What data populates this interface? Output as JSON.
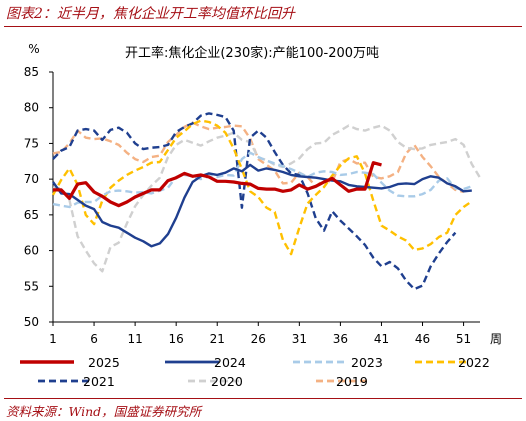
{
  "figure_title": "图表2：近半月，焦化企业开工率均值环比回升",
  "source": "资料来源：Wind，国盛证券研究所",
  "chart_data": {
    "type": "line",
    "title": "开工率:焦化企业(230家):产能100-200万吨",
    "ylabel": "%",
    "xlabel": "周",
    "ylim": [
      50,
      85
    ],
    "xlim": [
      1,
      53
    ],
    "yticks": [
      50,
      55,
      60,
      65,
      70,
      75,
      80,
      85
    ],
    "xticks": [
      1,
      6,
      11,
      16,
      21,
      26,
      31,
      36,
      41,
      46,
      51
    ],
    "grid": false,
    "legend_position": "bottom",
    "series": [
      {
        "name": "2025",
        "color": "#c00000",
        "dash": "solid",
        "width": 3.2,
        "values": [
          68.5,
          68.5,
          67.3,
          69.3,
          69.5,
          68.2,
          67.6,
          66.8,
          66.3,
          66.8,
          67.5,
          68.0,
          68.5,
          68.5,
          69.8,
          70.2,
          70.8,
          70.4,
          70.6,
          70.3,
          69.7,
          69.7,
          69.6,
          69.4,
          69.3,
          68.7,
          68.6,
          68.6,
          68.3,
          68.5,
          69.2,
          68.6,
          69.0,
          69.6,
          70.1,
          69.2,
          68.3,
          68.6,
          68.6,
          72.3,
          72.0
        ]
      },
      {
        "name": "2024",
        "color": "#1f3f8f",
        "dash": "solid",
        "width": 2.4,
        "values": [
          69.6,
          68.0,
          67.9,
          67.1,
          66.3,
          65.8,
          64.0,
          63.5,
          63.2,
          62.5,
          61.8,
          61.3,
          60.6,
          61.0,
          62.3,
          64.6,
          67.4,
          69.6,
          70.4,
          70.8,
          70.6,
          70.9,
          71.5,
          71.1,
          72.0,
          71.2,
          71.5,
          71.3,
          71.0,
          70.6,
          70.4,
          70.3,
          70.2,
          70.0,
          69.8,
          69.7,
          69.2,
          69.0,
          68.9,
          68.8,
          68.7,
          68.9,
          69.3,
          69.4,
          69.3,
          70.0,
          70.4,
          70.2,
          69.4,
          69.0,
          68.3,
          68.4
        ]
      },
      {
        "name": "2023",
        "color": "#a9cbe8",
        "dash": "dash",
        "width": 2.4,
        "values": [
          66.5,
          66.3,
          66.1,
          66.7,
          66.8,
          66.8,
          67.7,
          68.3,
          68.4,
          68.3,
          68.1,
          68.2,
          68.0,
          68.4,
          68.8,
          70.3,
          70.6,
          70.4,
          70.0,
          70.4,
          70.3,
          70.6,
          70.5,
          72.8,
          73.7,
          73.1,
          72.6,
          72.2,
          71.8,
          71.4,
          70.9,
          70.3,
          70.9,
          71.1,
          71.0,
          70.6,
          70.7,
          71.0,
          70.9,
          70.7,
          69.5,
          68.4,
          67.7,
          67.6,
          67.6,
          67.9,
          68.5,
          69.8,
          70.1,
          68.7,
          68.6,
          69.0
        ]
      },
      {
        "name": "2022",
        "color": "#ffc000",
        "dash": "dash",
        "width": 2.4,
        "values": [
          67.8,
          69.9,
          71.5,
          69.2,
          65.0,
          63.7,
          67.0,
          68.8,
          69.8,
          70.6,
          71.2,
          71.7,
          72.3,
          72.4,
          74.1,
          75.8,
          76.7,
          77.7,
          78.2,
          78.0,
          77.5,
          76.5,
          74.3,
          71.4,
          68.3,
          67.5,
          66.0,
          65.4,
          61.5,
          59.5,
          63.2,
          66.6,
          67.8,
          68.9,
          70.5,
          71.9,
          72.9,
          73.2,
          70.8,
          67.0,
          63.5,
          62.8,
          62.0,
          61.4,
          60.1,
          60.3,
          60.9,
          61.9,
          62.5,
          65.0,
          66.1,
          66.9
        ]
      },
      {
        "name": "2021",
        "color": "#1f3f8f",
        "dash": "dash",
        "width": 2.4,
        "values": [
          72.8,
          74.0,
          74.5,
          76.8,
          77.0,
          76.8,
          75.5,
          76.9,
          77.2,
          76.5,
          75.0,
          74.2,
          74.4,
          74.5,
          74.8,
          76.6,
          77.3,
          77.8,
          78.9,
          79.2,
          79.0,
          78.7,
          76.8,
          66.0,
          75.8,
          76.8,
          75.8,
          73.8,
          72.0,
          70.8,
          70.6,
          68.0,
          64.5,
          62.8,
          65.5,
          64.2,
          63.1,
          62.0,
          60.8,
          59.0,
          57.8,
          58.4,
          57.5,
          55.8,
          54.6,
          55.1,
          57.8,
          59.6,
          61.2,
          62.5
        ]
      },
      {
        "name": "2020",
        "color": "#d0d0d0",
        "dash": "dash",
        "width": 2.4,
        "values": [
          68.8,
          68.7,
          67.1,
          62.0,
          60.0,
          58.2,
          57.1,
          60.5,
          61.1,
          63.8,
          66.2,
          67.8,
          69.1,
          70.2,
          73.1,
          74.8,
          75.5,
          75.1,
          74.7,
          75.3,
          75.8,
          76.1,
          76.5,
          75.5,
          75.2,
          73.0,
          72.7,
          72.0,
          71.7,
          72.2,
          72.9,
          74.2,
          75.0,
          75.1,
          76.2,
          76.8,
          77.5,
          77.0,
          76.8,
          77.2,
          77.5,
          76.8,
          75.2,
          74.4,
          74.2,
          74.3,
          74.8,
          75.0,
          75.2,
          75.6,
          74.8,
          72.1,
          70.2
        ]
      },
      {
        "name": "2019",
        "color": "#f4b183",
        "dash": "dash",
        "width": 2.4,
        "values": [
          73.6,
          73.8,
          75.0,
          76.8,
          75.8,
          75.6,
          75.7,
          75.3,
          74.8,
          73.7,
          72.8,
          72.4,
          73.1,
          73.3,
          75.2,
          76.2,
          77.3,
          77.9,
          77.4,
          77.0,
          77.2,
          77.3,
          77.5,
          77.4,
          75.7,
          72.8,
          72.0,
          71.2,
          69.4,
          69.5,
          70.9,
          70.3,
          69.0,
          69.9,
          69.6,
          72.4,
          72.8,
          72.2,
          72.3,
          70.3,
          70.1,
          70.4,
          71.0,
          73.6,
          74.8,
          73.1,
          71.8,
          70.3,
          69.4,
          68.5,
          68.2
        ]
      }
    ]
  }
}
